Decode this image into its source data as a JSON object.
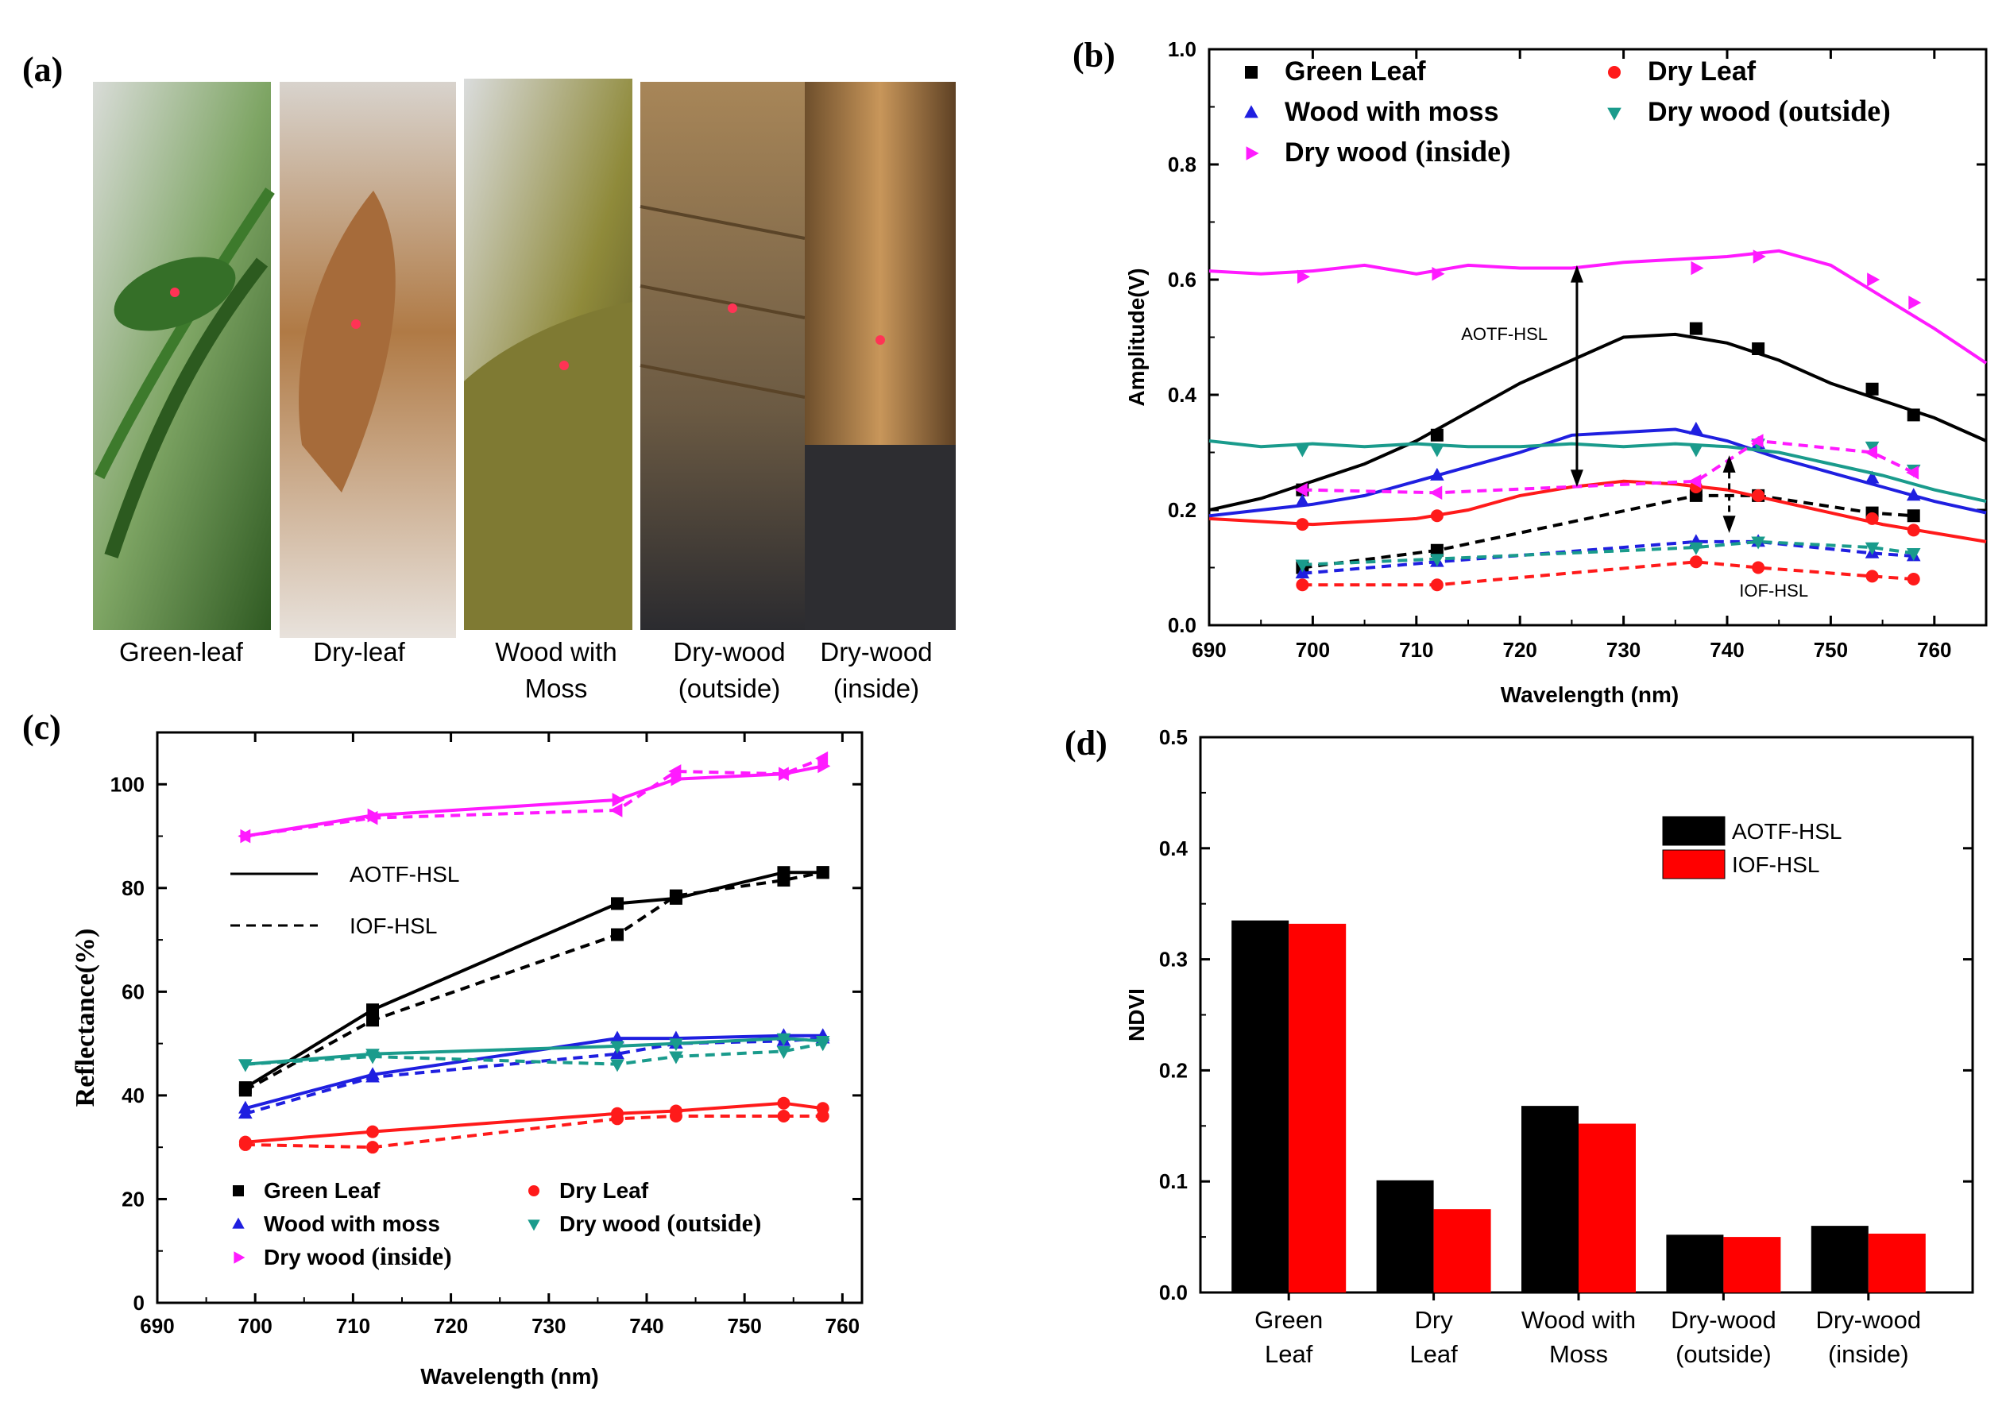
{
  "panels": {
    "a": "(a)",
    "b": "(b)",
    "c": "(c)",
    "d": "(d)"
  },
  "photos": [
    {
      "line1": "Green-leaf",
      "line2": "",
      "theme": "green"
    },
    {
      "line1": "Dry-leaf",
      "line2": "",
      "theme": "dryleaf"
    },
    {
      "line1": "Wood with",
      "line2": "Moss",
      "theme": "moss"
    },
    {
      "line1": "Dry-wood",
      "line2": "(outside)",
      "theme": "woodout"
    },
    {
      "line1": "Dry-wood",
      "line2": "(inside)",
      "theme": "woodin"
    }
  ],
  "series_names": [
    "Green Leaf",
    "Dry Leaf",
    "Wood with moss",
    "Dry wood (outside)",
    "Dry wood (inside)"
  ],
  "chart_data": [
    {
      "id": "b",
      "type": "line",
      "xlabel": "Wavelength (nm)",
      "ylabel": "Amplitude(V)",
      "xlim": [
        690,
        765
      ],
      "ylim": [
        0.0,
        1.0
      ],
      "xticks": [
        690,
        700,
        710,
        720,
        730,
        740,
        750,
        760
      ],
      "yticks": [
        0.0,
        0.2,
        0.4,
        0.6,
        0.8,
        1.0
      ],
      "ytick_labels": [
        "0.0",
        "0.2",
        "0.4",
        "0.6",
        "0.8",
        "1.0"
      ],
      "legend": [
        {
          "label": "Green Leaf",
          "color": "#000000",
          "marker": "square"
        },
        {
          "label": "Dry Leaf",
          "color": "#ff1a1a",
          "marker": "circle"
        },
        {
          "label": "Wood with moss",
          "color": "#1f1fe0",
          "marker": "triangle-up"
        },
        {
          "label": "Dry wood",
          "label_suffix": "(outside)",
          "color": "#1a9b8c",
          "marker": "triangle-down"
        },
        {
          "label": "Dry wood",
          "label_suffix": "(inside)",
          "color": "#ff1aff",
          "marker": "triangle-right"
        }
      ],
      "annotations": {
        "aotf": "AOTF-HSL",
        "iof": "IOF-HSL"
      },
      "series": [
        {
          "name": "Green Leaf (AOTF)",
          "color": "#000000",
          "style": "solid",
          "x": [
            690,
            695,
            700,
            705,
            710,
            715,
            720,
            725,
            730,
            735,
            740,
            745,
            750,
            755,
            760,
            765
          ],
          "y": [
            0.2,
            0.22,
            0.25,
            0.28,
            0.32,
            0.37,
            0.42,
            0.46,
            0.5,
            0.505,
            0.49,
            0.46,
            0.42,
            0.39,
            0.36,
            0.32
          ]
        },
        {
          "name": "Green Leaf (AOTF) markers",
          "color": "#000000",
          "marker": "square",
          "x": [
            699,
            712,
            737,
            743,
            754,
            758
          ],
          "y": [
            0.235,
            0.33,
            0.515,
            0.48,
            0.41,
            0.365
          ]
        },
        {
          "name": "Green Leaf (IOF)",
          "color": "#000000",
          "style": "dashed",
          "marker": "square",
          "x": [
            699,
            712,
            737,
            743,
            754,
            758
          ],
          "y": [
            0.1,
            0.13,
            0.225,
            0.225,
            0.195,
            0.19
          ]
        },
        {
          "name": "Dry Leaf (AOTF)",
          "color": "#ff1a1a",
          "style": "solid",
          "x": [
            690,
            695,
            700,
            705,
            710,
            715,
            720,
            725,
            730,
            735,
            740,
            745,
            750,
            755,
            760,
            765
          ],
          "y": [
            0.185,
            0.18,
            0.175,
            0.18,
            0.185,
            0.2,
            0.225,
            0.24,
            0.25,
            0.245,
            0.235,
            0.215,
            0.195,
            0.175,
            0.16,
            0.145
          ]
        },
        {
          "name": "Dry Leaf (AOTF) markers",
          "color": "#ff1a1a",
          "marker": "circle",
          "x": [
            699,
            712,
            737,
            743,
            754,
            758
          ],
          "y": [
            0.175,
            0.19,
            0.24,
            0.225,
            0.185,
            0.165
          ]
        },
        {
          "name": "Dry Leaf (IOF)",
          "color": "#ff1a1a",
          "style": "dashed",
          "marker": "circle",
          "x": [
            699,
            712,
            737,
            743,
            754,
            758
          ],
          "y": [
            0.07,
            0.07,
            0.11,
            0.1,
            0.085,
            0.08
          ]
        },
        {
          "name": "Wood with moss (AOTF)",
          "color": "#1f1fe0",
          "style": "solid",
          "x": [
            690,
            695,
            700,
            705,
            710,
            715,
            720,
            725,
            730,
            735,
            740,
            745,
            750,
            755,
            760,
            765
          ],
          "y": [
            0.19,
            0.2,
            0.21,
            0.225,
            0.25,
            0.275,
            0.3,
            0.33,
            0.335,
            0.34,
            0.32,
            0.29,
            0.265,
            0.24,
            0.215,
            0.195
          ]
        },
        {
          "name": "Wood with moss (AOTF) markers",
          "color": "#1f1fe0",
          "marker": "triangle-up",
          "x": [
            699,
            712,
            737,
            743,
            754,
            758
          ],
          "y": [
            0.215,
            0.26,
            0.34,
            0.315,
            0.255,
            0.225
          ]
        },
        {
          "name": "Wood with moss (IOF)",
          "color": "#1f1fe0",
          "style": "dashed",
          "marker": "triangle-up",
          "x": [
            699,
            712,
            737,
            743,
            754,
            758
          ],
          "y": [
            0.09,
            0.11,
            0.145,
            0.145,
            0.125,
            0.12
          ]
        },
        {
          "name": "Dry wood outside (AOTF)",
          "color": "#1a9b8c",
          "style": "solid",
          "x": [
            690,
            695,
            700,
            705,
            710,
            715,
            720,
            725,
            730,
            735,
            740,
            745,
            750,
            755,
            760,
            765
          ],
          "y": [
            0.32,
            0.31,
            0.315,
            0.31,
            0.315,
            0.31,
            0.31,
            0.315,
            0.31,
            0.315,
            0.31,
            0.3,
            0.28,
            0.26,
            0.235,
            0.215
          ]
        },
        {
          "name": "Dry wood outside (AOTF) markers",
          "color": "#1a9b8c",
          "marker": "triangle-down",
          "x": [
            699,
            712,
            737,
            743,
            754,
            758
          ],
          "y": [
            0.305,
            0.305,
            0.305,
            0.315,
            0.31,
            0.27
          ]
        },
        {
          "name": "Dry wood outside (IOF)",
          "color": "#1a9b8c",
          "style": "dashed",
          "marker": "triangle-down",
          "x": [
            699,
            712,
            737,
            743,
            754,
            758
          ],
          "y": [
            0.105,
            0.115,
            0.135,
            0.145,
            0.135,
            0.125
          ]
        },
        {
          "name": "Dry wood inside (AOTF)",
          "color": "#ff1aff",
          "style": "solid",
          "x": [
            690,
            695,
            700,
            705,
            710,
            715,
            720,
            725,
            730,
            735,
            740,
            745,
            750,
            755,
            760,
            765
          ],
          "y": [
            0.615,
            0.61,
            0.615,
            0.625,
            0.61,
            0.625,
            0.62,
            0.62,
            0.63,
            0.635,
            0.64,
            0.65,
            0.625,
            0.57,
            0.515,
            0.455
          ]
        },
        {
          "name": "Dry wood inside (AOTF) markers",
          "color": "#ff1aff",
          "marker": "triangle-right",
          "x": [
            699,
            712,
            737,
            743,
            754,
            758
          ],
          "y": [
            0.605,
            0.61,
            0.62,
            0.64,
            0.6,
            0.56
          ]
        },
        {
          "name": "Dry wood inside (IOF)",
          "color": "#ff1aff",
          "style": "dashed",
          "marker": "triangle-left",
          "x": [
            699,
            712,
            737,
            743,
            754,
            758
          ],
          "y": [
            0.235,
            0.23,
            0.25,
            0.32,
            0.3,
            0.265
          ]
        }
      ]
    },
    {
      "id": "c",
      "type": "line",
      "xlabel": "Wavelength (nm)",
      "ylabel": "Reflectance(%)",
      "xlim": [
        690,
        762
      ],
      "ylim": [
        0,
        110
      ],
      "xticks": [
        690,
        700,
        710,
        720,
        730,
        740,
        750,
        760
      ],
      "yticks": [
        0,
        20,
        40,
        60,
        80,
        100
      ],
      "style_legend": {
        "solid": "AOTF-HSL",
        "dashed": "IOF-HSL"
      },
      "legend": [
        {
          "label": "Green Leaf",
          "color": "#000000",
          "marker": "square"
        },
        {
          "label": "Dry Leaf",
          "color": "#ff1a1a",
          "marker": "circle"
        },
        {
          "label": "Wood with moss",
          "color": "#1f1fe0",
          "marker": "triangle-up"
        },
        {
          "label": "Dry wood",
          "label_suffix": "(outside)",
          "color": "#1a9b8c",
          "marker": "triangle-down"
        },
        {
          "label": "Dry wood",
          "label_suffix": "(inside)",
          "color": "#ff1aff",
          "marker": "triangle-right"
        }
      ],
      "series": [
        {
          "name": "Green Leaf (AOTF)",
          "color": "#000000",
          "style": "solid",
          "marker": "square",
          "x": [
            699,
            712,
            737,
            743,
            754,
            758
          ],
          "y": [
            41.5,
            56.5,
            77,
            78,
            83,
            83
          ]
        },
        {
          "name": "Green Leaf (IOF)",
          "color": "#000000",
          "style": "dashed",
          "marker": "square",
          "x": [
            699,
            712,
            737,
            743,
            754,
            758
          ],
          "y": [
            41,
            54.5,
            71,
            78.5,
            81.5,
            83
          ]
        },
        {
          "name": "Dry Leaf (AOTF)",
          "color": "#ff1a1a",
          "style": "solid",
          "marker": "circle",
          "x": [
            699,
            712,
            737,
            743,
            754,
            758
          ],
          "y": [
            31,
            33,
            36.5,
            37,
            38.5,
            37.5
          ]
        },
        {
          "name": "Dry Leaf (IOF)",
          "color": "#ff1a1a",
          "style": "dashed",
          "marker": "circle",
          "x": [
            699,
            712,
            737,
            743,
            754,
            758
          ],
          "y": [
            30.5,
            30,
            35.5,
            36,
            36,
            36
          ]
        },
        {
          "name": "Wood with moss (AOTF)",
          "color": "#1f1fe0",
          "style": "solid",
          "marker": "triangle-up",
          "x": [
            699,
            712,
            737,
            743,
            754,
            758
          ],
          "y": [
            37.5,
            44,
            51,
            51,
            51.5,
            51.5
          ]
        },
        {
          "name": "Wood with moss (IOF)",
          "color": "#1f1fe0",
          "style": "dashed",
          "marker": "triangle-up",
          "x": [
            699,
            712,
            737,
            743,
            754,
            758
          ],
          "y": [
            36.5,
            43.5,
            48,
            50,
            50.5,
            51
          ]
        },
        {
          "name": "Dry wood outside (AOTF)",
          "color": "#1a9b8c",
          "style": "solid",
          "marker": "triangle-down",
          "x": [
            699,
            712,
            737,
            743,
            754,
            758
          ],
          "y": [
            46,
            48,
            49.5,
            50,
            51,
            50.5
          ]
        },
        {
          "name": "Dry wood outside (IOF)",
          "color": "#1a9b8c",
          "style": "dashed",
          "marker": "triangle-down",
          "x": [
            699,
            712,
            737,
            743,
            754,
            758
          ],
          "y": [
            46,
            47.5,
            46,
            47.5,
            48.5,
            50
          ]
        },
        {
          "name": "Dry wood inside (AOTF)",
          "color": "#ff1aff",
          "style": "solid",
          "marker": "triangle-right",
          "x": [
            699,
            712,
            737,
            743,
            754,
            758
          ],
          "y": [
            90,
            94,
            97,
            101,
            102,
            103.5
          ]
        },
        {
          "name": "Dry wood inside (IOF)",
          "color": "#ff1aff",
          "style": "dashed",
          "marker": "triangle-left",
          "x": [
            699,
            712,
            737,
            743,
            754,
            758
          ],
          "y": [
            90,
            93.5,
            95,
            102.5,
            102,
            105
          ]
        }
      ]
    },
    {
      "id": "d",
      "type": "bar",
      "xlabel": "",
      "ylabel": "NDVI",
      "ylim": [
        0.0,
        0.5
      ],
      "yticks": [
        0.0,
        0.1,
        0.2,
        0.3,
        0.4,
        0.5
      ],
      "ytick_labels": [
        "0.0",
        "0.1",
        "0.2",
        "0.3",
        "0.4",
        "0.5"
      ],
      "categories": [
        [
          "Green",
          "Leaf"
        ],
        [
          "Dry",
          "Leaf"
        ],
        [
          "Wood with",
          "Moss"
        ],
        [
          "Dry-wood",
          "(outside)"
        ],
        [
          "Dry-wood",
          "(inside)"
        ]
      ],
      "series": [
        {
          "name": "AOTF-HSL",
          "color": "#000000",
          "values": [
            0.335,
            0.101,
            0.168,
            0.052,
            0.06
          ]
        },
        {
          "name": "IOF-HSL",
          "color": "#ff0000",
          "values": [
            0.332,
            0.075,
            0.152,
            0.05,
            0.053
          ]
        }
      ]
    }
  ]
}
